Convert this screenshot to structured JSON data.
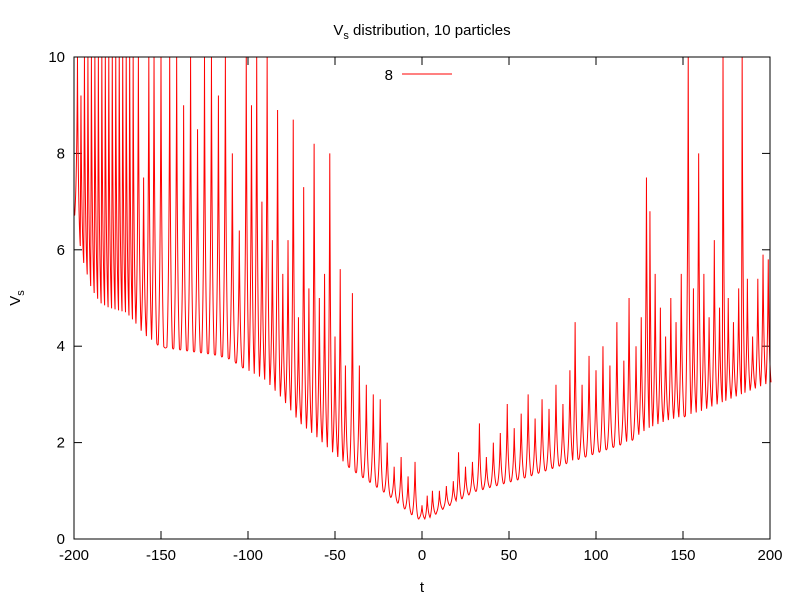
{
  "chart_data": {
    "type": "line",
    "title": {
      "main": "V",
      "sub": "s",
      "rest": " distribution, 10 particles"
    },
    "xlabel": "t",
    "ylabel": {
      "main": "V",
      "sub": "s"
    },
    "xlim": [
      -200,
      200
    ],
    "ylim": [
      0,
      10
    ],
    "xticks": [
      -200,
      -150,
      -100,
      -50,
      0,
      50,
      100,
      150,
      200
    ],
    "yticks": [
      0,
      2,
      4,
      6,
      8,
      10
    ],
    "grid": false,
    "legend": {
      "placement": "top-center"
    },
    "colors": {
      "series": "#ff0000",
      "axes": "#000000",
      "background": "#ffffff"
    },
    "series": [
      {
        "name": "8",
        "color": "#ff0000",
        "baseline": {
          "x": [
            -200,
            -195,
            -190,
            -185,
            -180,
            -175,
            -170,
            -165,
            -160,
            -150,
            -140,
            -130,
            -120,
            -110,
            -100,
            -90,
            -80,
            -70,
            -60,
            -50,
            -40,
            -30,
            -20,
            -10,
            -5,
            0,
            5,
            10,
            20,
            30,
            40,
            50,
            60,
            80,
            100,
            120,
            130,
            140,
            150,
            160,
            170,
            180,
            190,
            200
          ],
          "y": [
            6.8,
            5.8,
            5.2,
            4.9,
            4.8,
            4.75,
            4.7,
            4.5,
            4.25,
            4.0,
            3.95,
            3.9,
            3.85,
            3.75,
            3.5,
            3.3,
            2.9,
            2.4,
            2.1,
            1.75,
            1.45,
            1.2,
            0.95,
            0.65,
            0.5,
            0.4,
            0.45,
            0.6,
            0.8,
            1.0,
            1.1,
            1.2,
            1.3,
            1.55,
            1.8,
            2.05,
            2.3,
            2.45,
            2.55,
            2.65,
            2.8,
            2.95,
            3.1,
            3.25
          ]
        },
        "peaks": [
          {
            "x": -198,
            "y": 10
          },
          {
            "x": -196,
            "y": 9.2
          },
          {
            "x": -194,
            "y": 10
          },
          {
            "x": -192,
            "y": 10
          },
          {
            "x": -190,
            "y": 10
          },
          {
            "x": -188,
            "y": 10
          },
          {
            "x": -186,
            "y": 10
          },
          {
            "x": -184,
            "y": 10
          },
          {
            "x": -182,
            "y": 10
          },
          {
            "x": -180,
            "y": 10
          },
          {
            "x": -178,
            "y": 10
          },
          {
            "x": -176,
            "y": 10
          },
          {
            "x": -174,
            "y": 10
          },
          {
            "x": -172,
            "y": 10
          },
          {
            "x": -170,
            "y": 10
          },
          {
            "x": -168,
            "y": 10
          },
          {
            "x": -166,
            "y": 10
          },
          {
            "x": -163,
            "y": 10
          },
          {
            "x": -160,
            "y": 7.5
          },
          {
            "x": -157,
            "y": 10
          },
          {
            "x": -154,
            "y": 10
          },
          {
            "x": -150,
            "y": 10
          },
          {
            "x": -145,
            "y": 10
          },
          {
            "x": -141,
            "y": 10
          },
          {
            "x": -137,
            "y": 9.0
          },
          {
            "x": -133,
            "y": 10
          },
          {
            "x": -129,
            "y": 8.5
          },
          {
            "x": -125,
            "y": 10
          },
          {
            "x": -121,
            "y": 10
          },
          {
            "x": -117,
            "y": 9.2
          },
          {
            "x": -113,
            "y": 10
          },
          {
            "x": -109,
            "y": 8.0
          },
          {
            "x": -105,
            "y": 6.4
          },
          {
            "x": -101,
            "y": 10
          },
          {
            "x": -98,
            "y": 9.0
          },
          {
            "x": -95,
            "y": 10
          },
          {
            "x": -92,
            "y": 7.0
          },
          {
            "x": -89,
            "y": 10
          },
          {
            "x": -86,
            "y": 6.2
          },
          {
            "x": -83,
            "y": 8.9
          },
          {
            "x": -80,
            "y": 5.5
          },
          {
            "x": -77,
            "y": 6.2
          },
          {
            "x": -74,
            "y": 8.7
          },
          {
            "x": -71,
            "y": 4.6
          },
          {
            "x": -68,
            "y": 7.3
          },
          {
            "x": -65,
            "y": 5.2
          },
          {
            "x": -62,
            "y": 8.2
          },
          {
            "x": -59,
            "y": 5.0
          },
          {
            "x": -56,
            "y": 5.5
          },
          {
            "x": -53,
            "y": 8.0
          },
          {
            "x": -50,
            "y": 4.2
          },
          {
            "x": -47,
            "y": 5.6
          },
          {
            "x": -44,
            "y": 3.6
          },
          {
            "x": -40,
            "y": 5.1
          },
          {
            "x": -36,
            "y": 3.6
          },
          {
            "x": -32,
            "y": 3.2
          },
          {
            "x": -28,
            "y": 3.0
          },
          {
            "x": -24,
            "y": 2.9
          },
          {
            "x": -20,
            "y": 2.0
          },
          {
            "x": -16,
            "y": 1.5
          },
          {
            "x": -12,
            "y": 1.7
          },
          {
            "x": -8,
            "y": 1.3
          },
          {
            "x": -4,
            "y": 1.6
          },
          {
            "x": 0,
            "y": 0.7
          },
          {
            "x": 3,
            "y": 0.9
          },
          {
            "x": 6,
            "y": 1.0
          },
          {
            "x": 10,
            "y": 1.0
          },
          {
            "x": 14,
            "y": 1.1
          },
          {
            "x": 18,
            "y": 1.2
          },
          {
            "x": 21,
            "y": 1.8
          },
          {
            "x": 25,
            "y": 1.5
          },
          {
            "x": 29,
            "y": 1.6
          },
          {
            "x": 33,
            "y": 2.4
          },
          {
            "x": 37,
            "y": 1.7
          },
          {
            "x": 41,
            "y": 2.0
          },
          {
            "x": 45,
            "y": 2.2
          },
          {
            "x": 49,
            "y": 2.8
          },
          {
            "x": 53,
            "y": 2.3
          },
          {
            "x": 57,
            "y": 2.6
          },
          {
            "x": 61,
            "y": 3.0
          },
          {
            "x": 65,
            "y": 2.5
          },
          {
            "x": 69,
            "y": 2.9
          },
          {
            "x": 73,
            "y": 2.7
          },
          {
            "x": 77,
            "y": 3.2
          },
          {
            "x": 81,
            "y": 2.8
          },
          {
            "x": 85,
            "y": 3.5
          },
          {
            "x": 88,
            "y": 4.5
          },
          {
            "x": 92,
            "y": 3.2
          },
          {
            "x": 96,
            "y": 3.8
          },
          {
            "x": 100,
            "y": 3.5
          },
          {
            "x": 104,
            "y": 4.0
          },
          {
            "x": 108,
            "y": 3.6
          },
          {
            "x": 112,
            "y": 4.5
          },
          {
            "x": 116,
            "y": 3.7
          },
          {
            "x": 119,
            "y": 5.0
          },
          {
            "x": 123,
            "y": 4.0
          },
          {
            "x": 126,
            "y": 4.6
          },
          {
            "x": 129,
            "y": 7.5
          },
          {
            "x": 131,
            "y": 6.8
          },
          {
            "x": 134,
            "y": 5.5
          },
          {
            "x": 137,
            "y": 4.8
          },
          {
            "x": 140,
            "y": 4.2
          },
          {
            "x": 143,
            "y": 5.0
          },
          {
            "x": 146,
            "y": 4.5
          },
          {
            "x": 149,
            "y": 5.5
          },
          {
            "x": 153,
            "y": 10
          },
          {
            "x": 156,
            "y": 5.2
          },
          {
            "x": 159,
            "y": 8.0
          },
          {
            "x": 162,
            "y": 5.5
          },
          {
            "x": 165,
            "y": 4.6
          },
          {
            "x": 168,
            "y": 6.2
          },
          {
            "x": 171,
            "y": 4.8
          },
          {
            "x": 173,
            "y": 10
          },
          {
            "x": 176,
            "y": 5.0
          },
          {
            "x": 179,
            "y": 4.5
          },
          {
            "x": 182,
            "y": 5.2
          },
          {
            "x": 184,
            "y": 10
          },
          {
            "x": 187,
            "y": 5.4
          },
          {
            "x": 190,
            "y": 4.2
          },
          {
            "x": 193,
            "y": 5.4
          },
          {
            "x": 196,
            "y": 5.9
          },
          {
            "x": 199,
            "y": 5.8
          }
        ]
      }
    ]
  }
}
